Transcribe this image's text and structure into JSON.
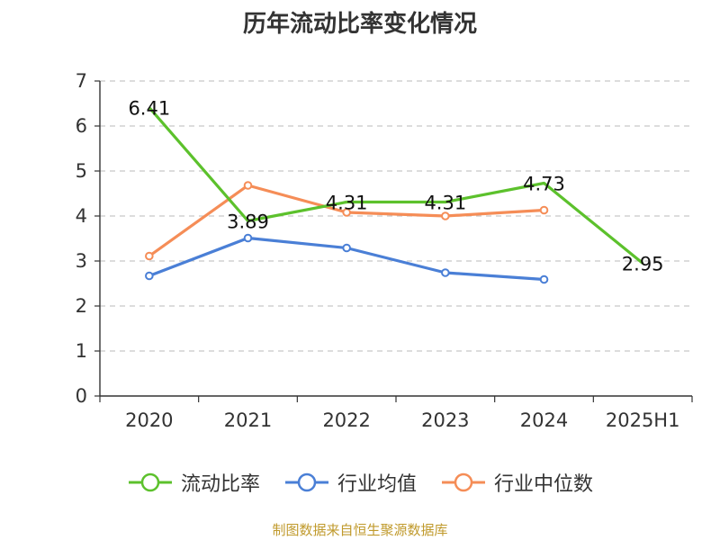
{
  "title": "历年流动比率变化情况",
  "source": "制图数据来自恒生聚源数据库",
  "chart_data": {
    "type": "line",
    "title": "历年流动比率变化情况",
    "xlabel": "",
    "ylabel": "",
    "categories": [
      "2020",
      "2021",
      "2022",
      "2023",
      "2024",
      "2025H1"
    ],
    "ylim": [
      0,
      7
    ],
    "yticks": [
      "0",
      "1",
      "2",
      "3",
      "4",
      "5",
      "6",
      "7"
    ],
    "grid": true,
    "legend_position": "bottom",
    "series": [
      {
        "name": "流动比率",
        "color": "#5cc12c",
        "values": [
          6.41,
          3.89,
          4.31,
          4.31,
          4.73,
          2.95
        ],
        "labels": [
          "6.41",
          "3.89",
          "4.31",
          "4.31",
          "4.73",
          "2.95"
        ]
      },
      {
        "name": "行业均值",
        "color": "#4a7fd6",
        "values": [
          2.67,
          3.51,
          3.29,
          2.74,
          2.59,
          null
        ]
      },
      {
        "name": "行业中位数",
        "color": "#f58d57",
        "values": [
          3.11,
          4.68,
          4.08,
          4.0,
          4.13,
          null
        ]
      }
    ]
  }
}
